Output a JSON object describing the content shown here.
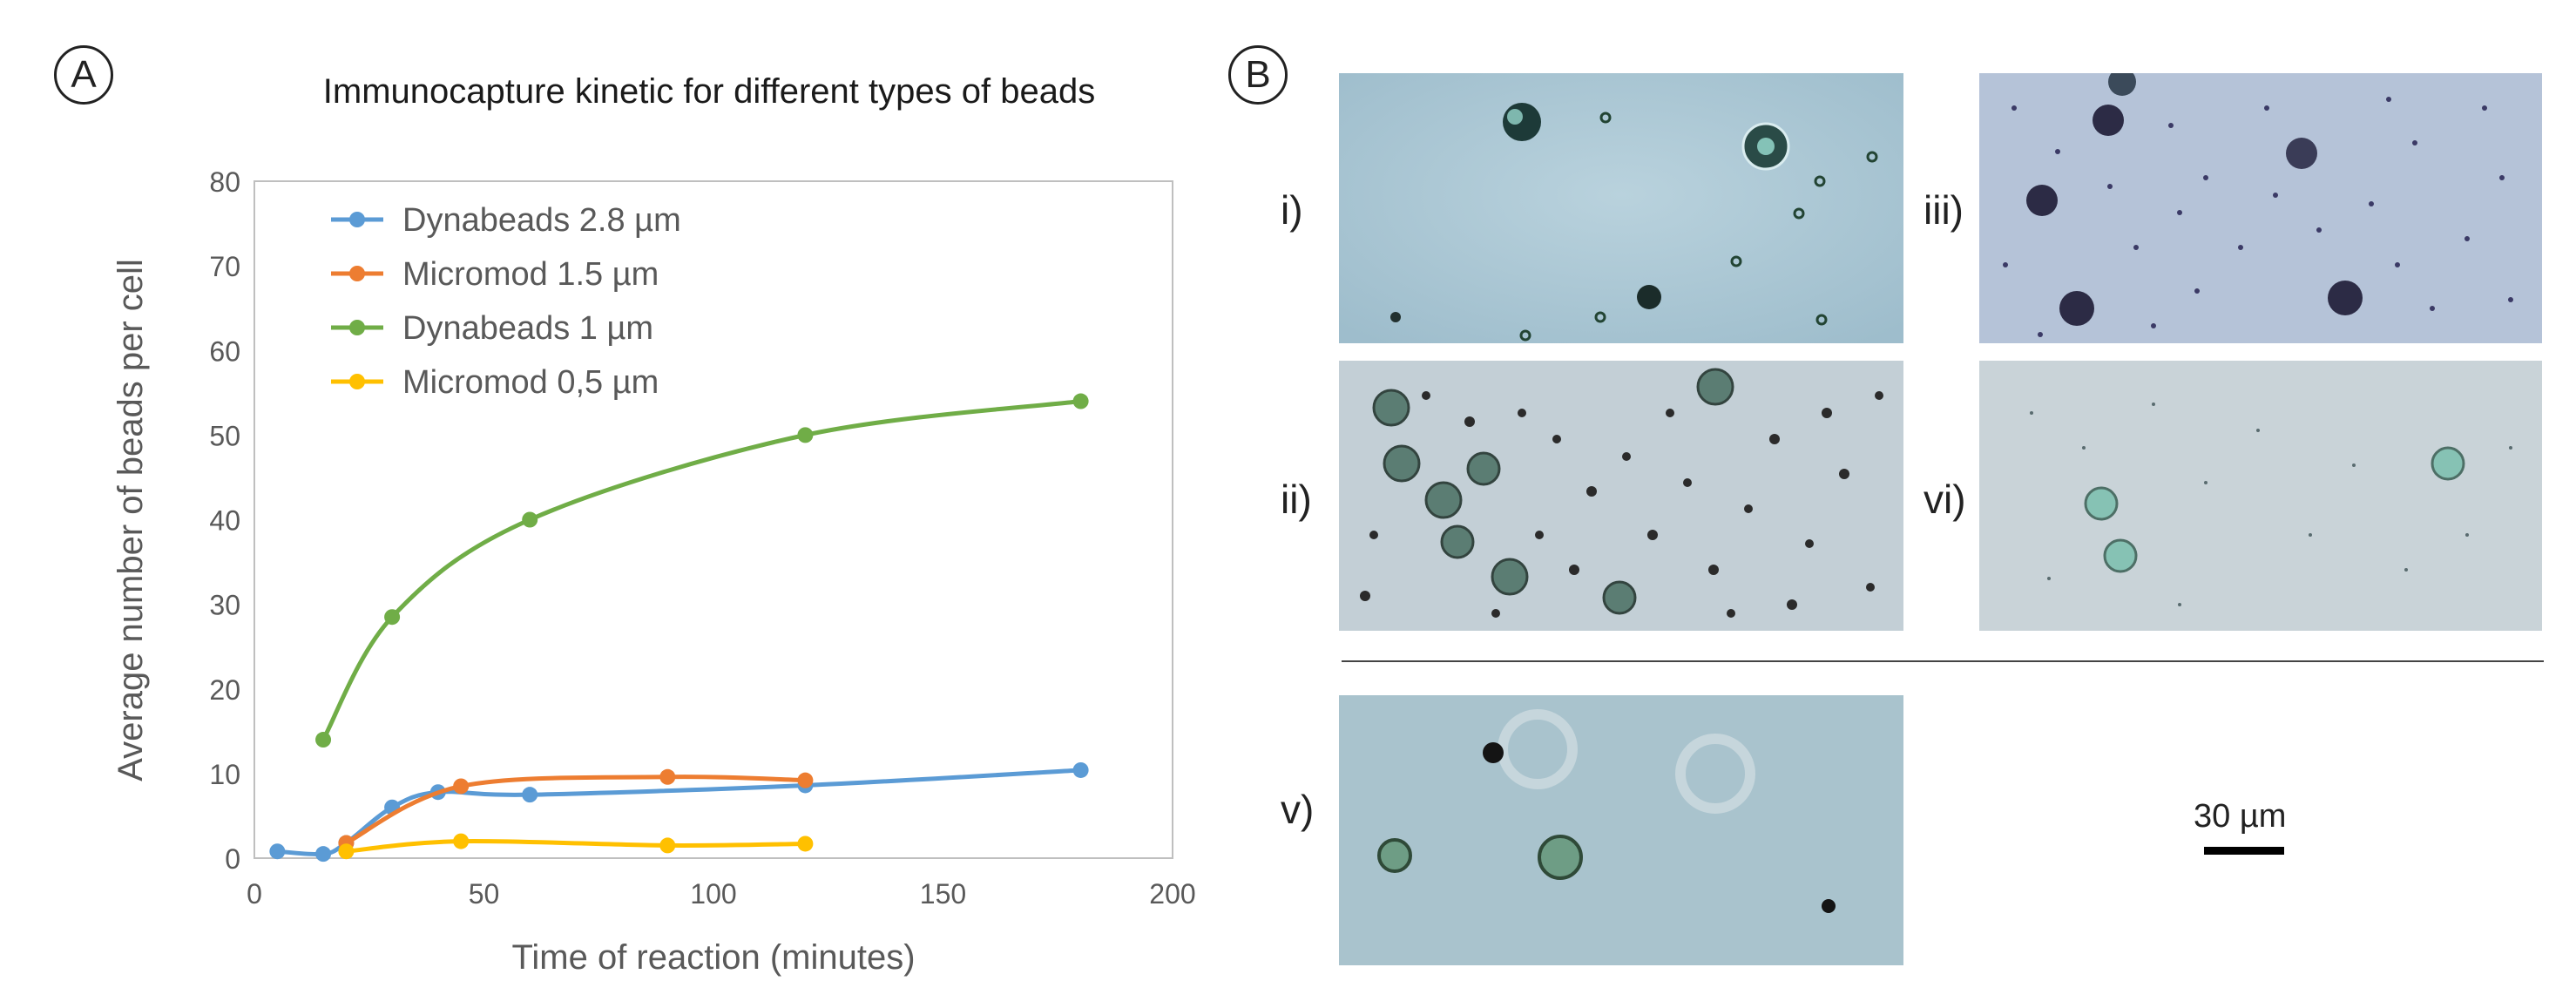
{
  "panels": {
    "a_label": "A",
    "b_label": "B"
  },
  "chart_data": {
    "type": "line",
    "title": "Immunocapture kinetic for different types of beads",
    "xlabel": "Time of reaction (minutes)",
    "ylabel": "Average number of beads per cell",
    "xlim": [
      0,
      200
    ],
    "ylim": [
      0,
      80
    ],
    "xticks": [
      0,
      50,
      100,
      150,
      200
    ],
    "yticks": [
      0,
      10,
      20,
      30,
      40,
      50,
      60,
      70,
      80
    ],
    "grid": false,
    "legend_position": "top-left",
    "series": [
      {
        "name": "Dynabeads 2.8 µm",
        "color": "#5b9bd5",
        "points": [
          [
            5,
            0.8
          ],
          [
            15,
            0.5
          ],
          [
            20,
            1.8
          ],
          [
            30,
            6
          ],
          [
            40,
            7.8
          ],
          [
            60,
            7.5
          ],
          [
            120,
            8.6
          ],
          [
            180,
            10.4
          ]
        ]
      },
      {
        "name": "Micromod 1.5 µm",
        "color": "#ed7d31",
        "points": [
          [
            20,
            1.8
          ],
          [
            45,
            8.5
          ],
          [
            90,
            9.6
          ],
          [
            120,
            9.2
          ]
        ]
      },
      {
        "name": "Dynabeads 1 µm",
        "color": "#70ad47",
        "points": [
          [
            15,
            14
          ],
          [
            30,
            28.5
          ],
          [
            60,
            40
          ],
          [
            120,
            50
          ],
          [
            180,
            54
          ]
        ]
      },
      {
        "name": "Micromod 0,5 µm",
        "color": "#ffc000",
        "points": [
          [
            20,
            0.8
          ],
          [
            45,
            2
          ],
          [
            90,
            1.5
          ],
          [
            120,
            1.7
          ]
        ]
      }
    ]
  },
  "micrographs": {
    "labels": [
      "i)",
      "iii)",
      "ii)",
      "vi)",
      "v)"
    ],
    "scale_bar_label": "30 µm"
  }
}
